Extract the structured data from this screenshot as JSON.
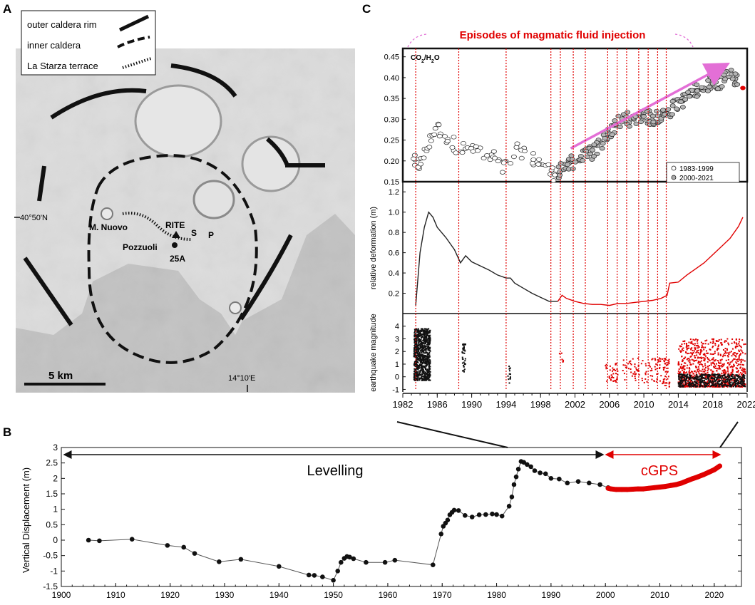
{
  "panel_labels": {
    "a": "A",
    "b": "B",
    "c": "C"
  },
  "map": {
    "legend": [
      {
        "label": "outer caldera rim",
        "style": "solid"
      },
      {
        "label": "inner caldera",
        "style": "dashed"
      },
      {
        "label": "La Starza terrace",
        "style": "hatched"
      }
    ],
    "lat_label": "40°50'N",
    "lon_label": "14°10'E",
    "scale_label": "5 km",
    "places": {
      "nuovo": "M. Nuovo",
      "pozzuoli": "Pozzuoli",
      "rite": "RITE",
      "s": "S",
      "p": "P",
      "station": "25A"
    }
  },
  "colors": {
    "red": "#e00000",
    "pink": "#e36fd6",
    "black": "#111111",
    "line": "#333333"
  },
  "chart_data": [
    {
      "type": "line",
      "panel": "B",
      "ylabel": "Vertical Displacement (m)",
      "xlabel": "",
      "xlim": [
        1900,
        2025
      ],
      "ylim": [
        -1.5,
        3
      ],
      "xticks": [
        1900,
        1910,
        1920,
        1930,
        1940,
        1950,
        1960,
        1970,
        1980,
        1990,
        2000,
        2010,
        2020
      ],
      "yticks": [
        -1.5,
        -1,
        -0.5,
        0,
        0.5,
        1,
        1.5,
        2,
        2.5,
        3
      ],
      "ytick_labels": [
        "-1.5",
        "-1",
        "-0.5",
        "0",
        "0.5",
        "1",
        "1.5",
        "2",
        "2.5",
        "3"
      ],
      "annotations": {
        "levelling": "Levelling",
        "cgps": "cGPS"
      },
      "series": [
        {
          "name": "Levelling",
          "x": [
            1905,
            1907,
            1913,
            1919.5,
            1922.5,
            1924.5,
            1929,
            1933,
            1940,
            1945.5,
            1946.5,
            1948,
            1950,
            1950.8,
            1951.4,
            1952,
            1952.5,
            1953,
            1953.7,
            1956,
            1959.5,
            1961.3,
            1968.3,
            1969.8,
            1970.2,
            1970.6,
            1971,
            1971.4,
            1971.8,
            1972.2,
            1973,
            1974.2,
            1975.5,
            1976.8,
            1978,
            1979.2,
            1980,
            1981,
            1982.3,
            1982.8,
            1983.2,
            1983.6,
            1984,
            1984.5,
            1985,
            1985.6,
            1986.3,
            1987,
            1988,
            1989,
            1990,
            1991.5,
            1993,
            1995,
            1997,
            1999,
            2000.5
          ],
          "y": [
            0,
            -0.02,
            0.03,
            -0.17,
            -0.23,
            -0.43,
            -0.7,
            -0.62,
            -0.85,
            -1.13,
            -1.14,
            -1.19,
            -1.3,
            -1.0,
            -0.72,
            -0.59,
            -0.53,
            -0.55,
            -0.6,
            -0.72,
            -0.72,
            -0.65,
            -0.8,
            0.2,
            0.45,
            0.55,
            0.65,
            0.82,
            0.9,
            0.97,
            0.96,
            0.8,
            0.75,
            0.82,
            0.83,
            0.85,
            0.83,
            0.78,
            1.1,
            1.4,
            1.8,
            2.05,
            2.3,
            2.55,
            2.52,
            2.45,
            2.38,
            2.25,
            2.18,
            2.15,
            2.0,
            1.98,
            1.85,
            1.9,
            1.85,
            1.8,
            1.7
          ]
        },
        {
          "name": "cGPS",
          "x": [
            2000.5,
            2001,
            2002,
            2003,
            2004,
            2005,
            2006,
            2007,
            2008,
            2009,
            2010,
            2011,
            2012,
            2013,
            2014,
            2015,
            2016,
            2017,
            2018,
            2019,
            2020,
            2021
          ],
          "y": [
            1.68,
            1.66,
            1.64,
            1.64,
            1.64,
            1.65,
            1.66,
            1.66,
            1.68,
            1.7,
            1.72,
            1.74,
            1.77,
            1.8,
            1.85,
            1.92,
            1.99,
            2.05,
            2.12,
            2.2,
            2.28,
            2.4
          ]
        }
      ]
    },
    {
      "type": "scatter",
      "panel": "C-top",
      "title": "Episodes of magmatic fluid injection",
      "ylabel": "",
      "series_label": "CO2/H2O",
      "xlim": [
        1982,
        2022
      ],
      "ylim": [
        0.15,
        0.47
      ],
      "yticks": [
        0.15,
        0.2,
        0.25,
        0.3,
        0.35,
        0.4,
        0.45
      ],
      "ytick_labels": [
        "0.15",
        "0.20",
        "0.25",
        "0.30",
        "0.35",
        "0.40",
        "0.45"
      ],
      "legend": [
        "1983-1999",
        "2000-2021"
      ],
      "legend_position": "bottom-right",
      "trend_arrow": {
        "x": [
          2001.5,
          2019.5
        ],
        "y": [
          0.23,
          0.43
        ]
      },
      "episodes_x": [
        1983.5,
        1988.5,
        1994,
        1999.2,
        2000.3,
        2001.8,
        2003.2,
        2005.8,
        2006.9,
        2008,
        2009.4,
        2010.5,
        2011.6,
        2012.6
      ],
      "anchors_1983_1999": [
        [
          1983.2,
          0.19
        ],
        [
          1983.5,
          0.2
        ],
        [
          1984,
          0.19
        ],
        [
          1984.6,
          0.22
        ],
        [
          1985.2,
          0.25
        ],
        [
          1985.8,
          0.28
        ],
        [
          1986.5,
          0.27
        ],
        [
          1987.5,
          0.25
        ],
        [
          1988.5,
          0.23
        ],
        [
          1989.5,
          0.23
        ],
        [
          1990.5,
          0.23
        ],
        [
          1991.5,
          0.2
        ],
        [
          1992.5,
          0.21
        ],
        [
          1993.5,
          0.18
        ],
        [
          1994.5,
          0.2
        ],
        [
          1995.5,
          0.23
        ],
        [
          1996.5,
          0.21
        ],
        [
          1997.5,
          0.2
        ],
        [
          1998.5,
          0.19
        ],
        [
          1999.3,
          0.17
        ],
        [
          1999.9,
          0.17
        ]
      ],
      "anchors_2000_2021": [
        [
          2000,
          0.17
        ],
        [
          2001,
          0.19
        ],
        [
          2002,
          0.2
        ],
        [
          2003,
          0.21
        ],
        [
          2004,
          0.22
        ],
        [
          2005,
          0.24
        ],
        [
          2006,
          0.27
        ],
        [
          2007,
          0.29
        ],
        [
          2008,
          0.3
        ],
        [
          2009,
          0.3
        ],
        [
          2010,
          0.31
        ],
        [
          2011,
          0.3
        ],
        [
          2012,
          0.31
        ],
        [
          2013,
          0.32
        ],
        [
          2014,
          0.34
        ],
        [
          2015,
          0.35
        ],
        [
          2016,
          0.37
        ],
        [
          2017,
          0.38
        ],
        [
          2018,
          0.39
        ],
        [
          2019,
          0.39
        ],
        [
          2020,
          0.41
        ],
        [
          2021,
          0.39
        ]
      ],
      "last_point": [
        2021.5,
        0.375
      ]
    },
    {
      "type": "line",
      "panel": "C-middle",
      "ylabel": "relative deformation (m)",
      "xlim": [
        1982,
        2022
      ],
      "ylim": [
        0,
        1.3
      ],
      "yticks": [
        0.2,
        0.4,
        0.6,
        0.8,
        1.0,
        1.2
      ],
      "ytick_labels": [
        "0.2",
        "0.4",
        "0.6",
        "0.8",
        "1.0",
        "1.2"
      ],
      "series": [
        {
          "name": "1983-1999",
          "x": [
            1983.5,
            1984,
            1984.5,
            1985,
            1985.5,
            1986,
            1987,
            1988,
            1988.7,
            1989.3,
            1990,
            1991,
            1992,
            1993,
            1994,
            1994.5,
            1995,
            1996,
            1997,
            1998,
            1999,
            2000
          ],
          "y": [
            0.08,
            0.6,
            0.85,
            1.0,
            0.95,
            0.85,
            0.75,
            0.63,
            0.5,
            0.57,
            0.51,
            0.47,
            0.43,
            0.38,
            0.35,
            0.35,
            0.3,
            0.25,
            0.2,
            0.16,
            0.12,
            0.12
          ]
        },
        {
          "name": "2000-2021",
          "x": [
            2000,
            2000.5,
            2001,
            2002,
            2003,
            2004,
            2005,
            2006,
            2007,
            2008,
            2009,
            2010,
            2011,
            2012,
            2012.7,
            2013,
            2014,
            2015,
            2016,
            2017,
            2018,
            2019,
            2020,
            2021,
            2021.5
          ],
          "y": [
            0.12,
            0.18,
            0.15,
            0.12,
            0.1,
            0.09,
            0.09,
            0.08,
            0.1,
            0.1,
            0.11,
            0.12,
            0.13,
            0.15,
            0.18,
            0.3,
            0.31,
            0.38,
            0.44,
            0.5,
            0.58,
            0.66,
            0.74,
            0.86,
            0.95
          ]
        }
      ]
    },
    {
      "type": "scatter",
      "panel": "C-bottom",
      "ylabel": "earthquake magnitude",
      "xlabel": "",
      "xlim": [
        1982,
        2022
      ],
      "ylim": [
        -1,
        5
      ],
      "yticks": [
        -1,
        0,
        1,
        2,
        3,
        4
      ],
      "ytick_labels": [
        "-1",
        "0",
        "1",
        "2",
        "3",
        "4"
      ],
      "xticks": [
        1982,
        1986,
        1990,
        1994,
        1998,
        2002,
        2006,
        2010,
        2014,
        2018,
        2022
      ],
      "clusters": [
        {
          "x": [
            1983.3,
            1985.2
          ],
          "y": [
            -0.3,
            3.8
          ],
          "color": "black",
          "n": 900
        },
        {
          "x": [
            1988.9,
            1989.3
          ],
          "y": [
            0.2,
            2.6
          ],
          "color": "black",
          "n": 40
        },
        {
          "x": [
            1994.2,
            1994.5
          ],
          "y": [
            -0.5,
            0.9
          ],
          "color": "black",
          "n": 15
        },
        {
          "x": [
            2000.2,
            2000.7
          ],
          "y": [
            0.8,
            2.0
          ],
          "color": "red",
          "n": 6
        },
        {
          "x": [
            2005.5,
            2007
          ],
          "y": [
            -0.5,
            1.2
          ],
          "color": "red",
          "n": 40
        },
        {
          "x": [
            2007.5,
            2011.5
          ],
          "y": [
            -0.5,
            1.5
          ],
          "color": "red",
          "n": 70
        },
        {
          "x": [
            2011.5,
            2013
          ],
          "y": [
            -0.8,
            1.5
          ],
          "color": "red",
          "n": 60
        },
        {
          "x": [
            2014,
            2021.8
          ],
          "y": [
            -0.8,
            3.0
          ],
          "color": "red",
          "n": 900
        },
        {
          "x": [
            2014,
            2021.8
          ],
          "y": [
            -0.8,
            0.2
          ],
          "color": "black",
          "n": 500
        }
      ]
    }
  ]
}
